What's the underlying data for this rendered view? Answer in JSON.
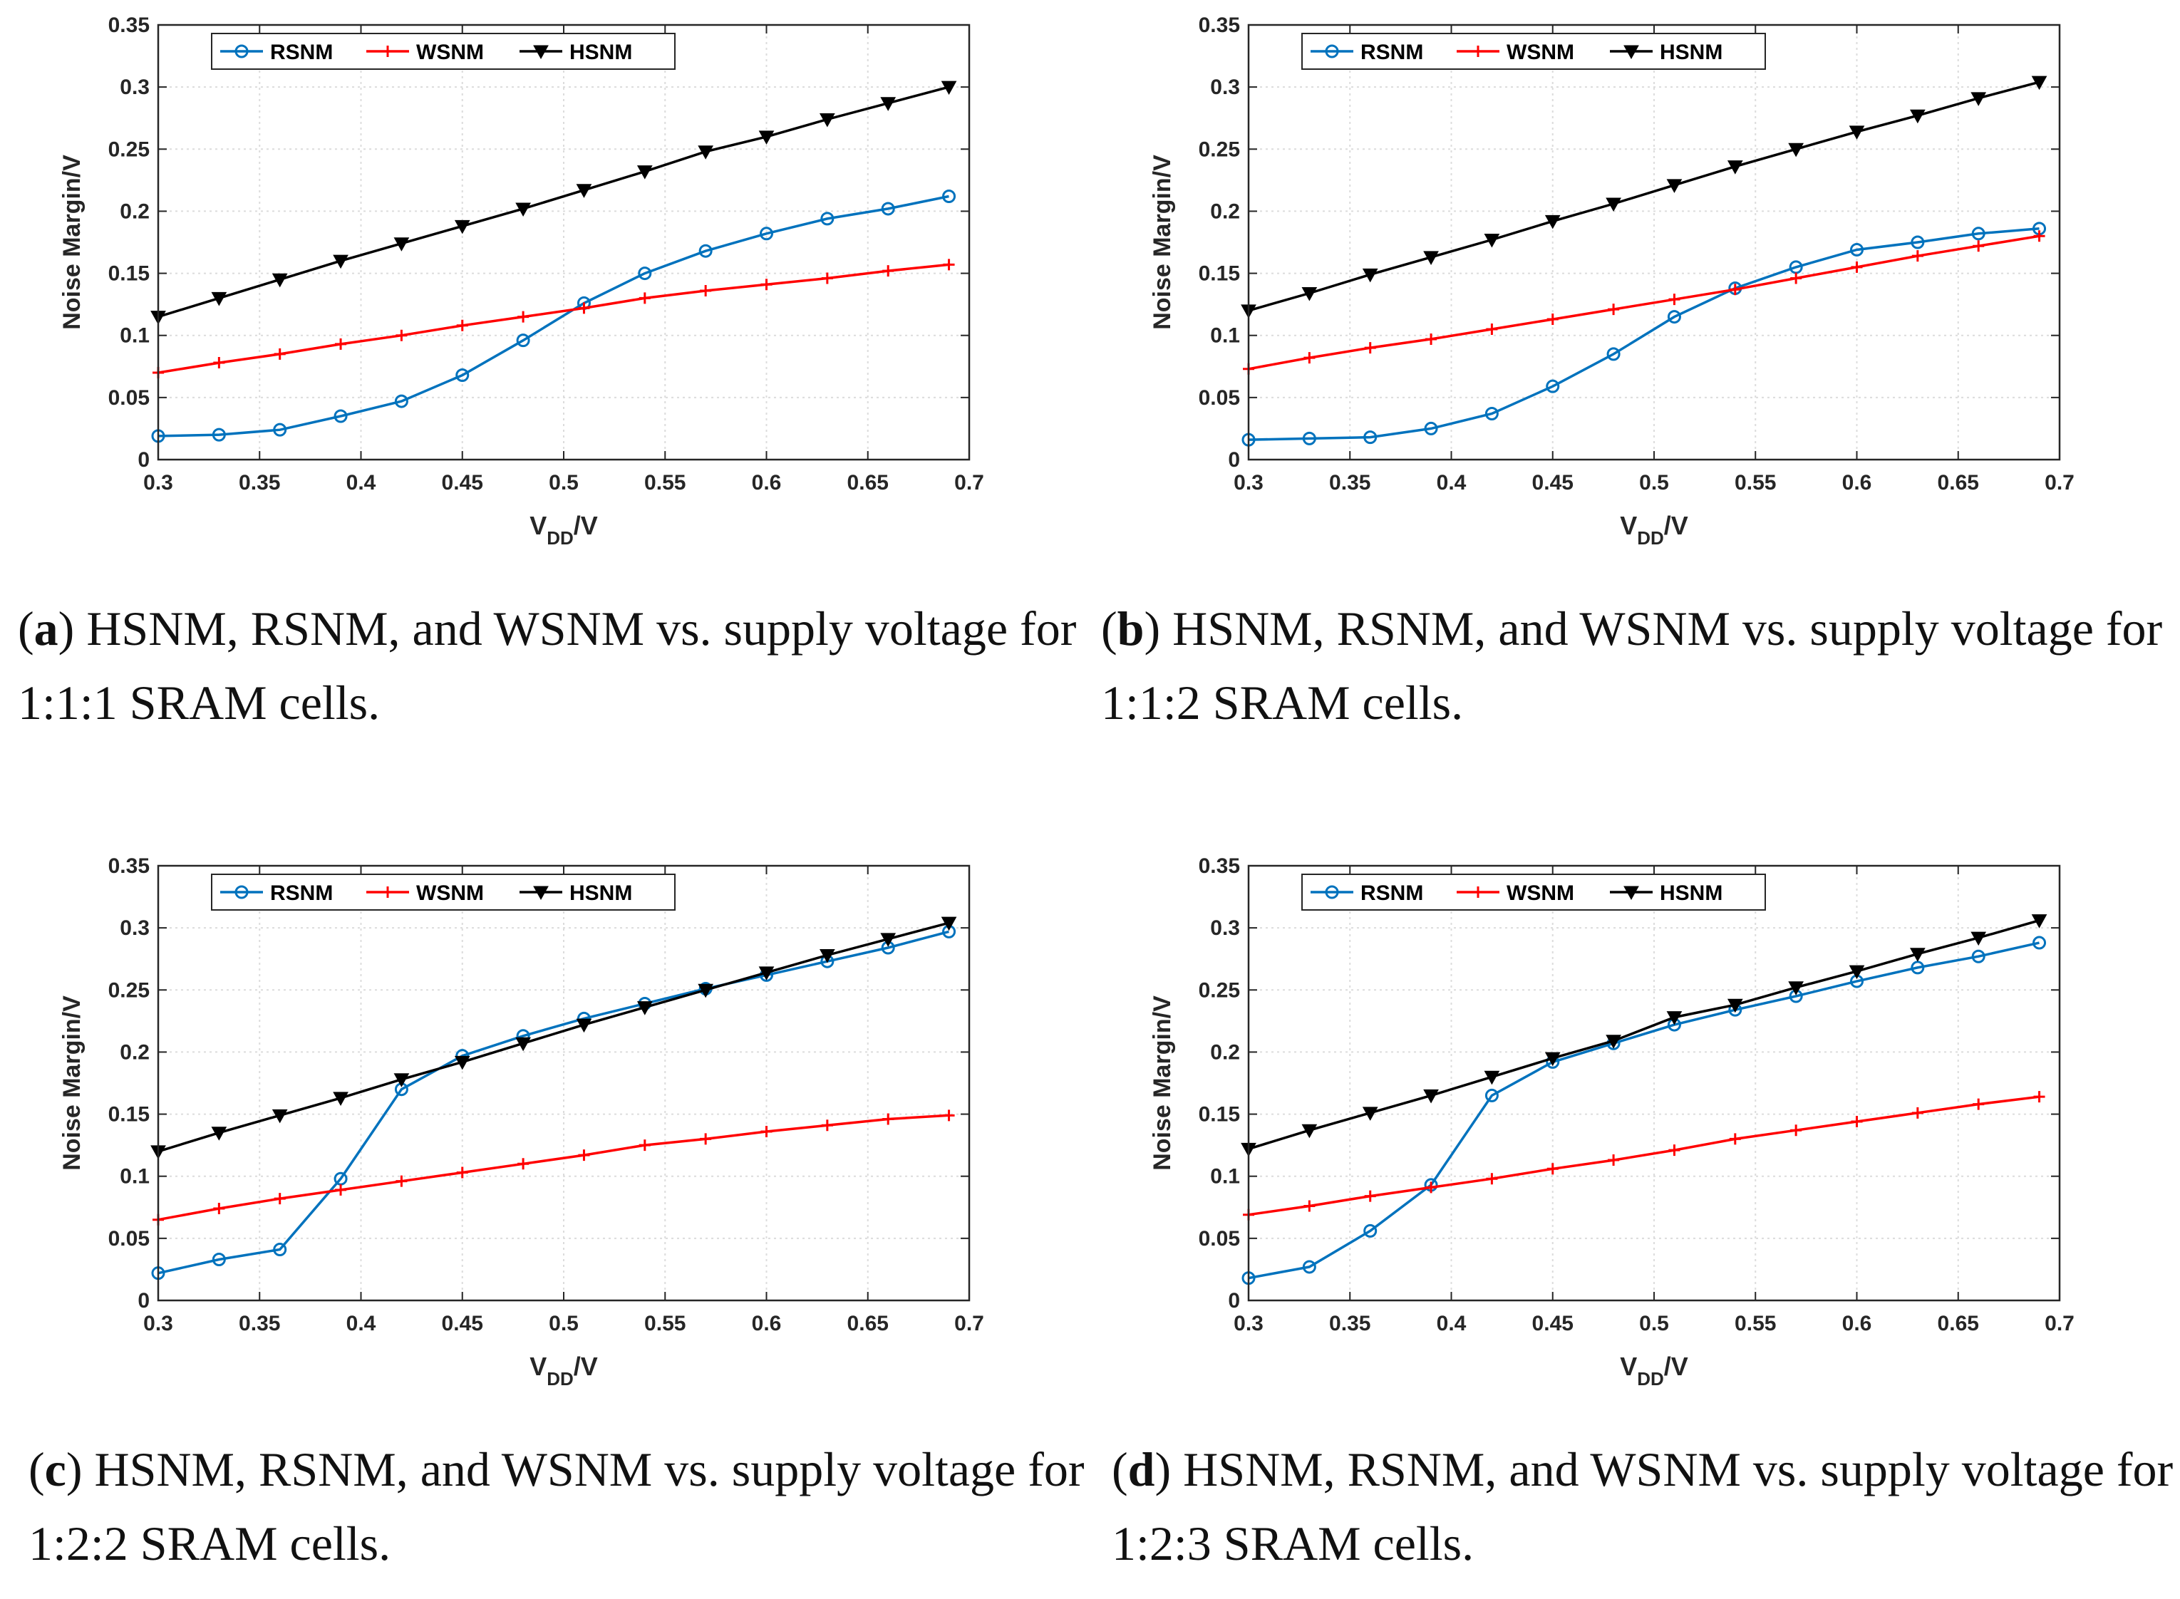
{
  "chart_data": [
    {
      "id": "a",
      "type": "line",
      "xlabel_main": "V",
      "xlabel_sub": "DD",
      "xlabel_tail": "/V",
      "ylabel": "Noise Margin/V",
      "xlim": [
        0.3,
        0.7
      ],
      "ylim": [
        0,
        0.35
      ],
      "xticks": [
        "0.3",
        "0.35",
        "0.4",
        "0.45",
        "0.5",
        "0.55",
        "0.6",
        "0.65",
        "0.7"
      ],
      "yticks": [
        "0",
        "0.05",
        "0.1",
        "0.15",
        "0.2",
        "0.25",
        "0.3",
        "0.35"
      ],
      "grid": true,
      "x": [
        0.3,
        0.33,
        0.36,
        0.39,
        0.42,
        0.45,
        0.48,
        0.51,
        0.54,
        0.57,
        0.6,
        0.63,
        0.66,
        0.69
      ],
      "series": [
        {
          "name": "RSNM",
          "color": "#0072BD",
          "marker": "circle",
          "values": [
            0.019,
            0.02,
            0.024,
            0.035,
            0.047,
            0.068,
            0.096,
            0.126,
            0.15,
            0.168,
            0.182,
            0.194,
            0.202,
            0.212
          ]
        },
        {
          "name": "WSNM",
          "color": "#FF0000",
          "marker": "plus",
          "values": [
            0.07,
            0.078,
            0.085,
            0.093,
            0.1,
            0.108,
            0.115,
            0.122,
            0.13,
            0.136,
            0.141,
            0.146,
            0.152,
            0.157
          ]
        },
        {
          "name": "HSNM",
          "color": "#000000",
          "marker": "triangle-down",
          "values": [
            0.115,
            0.13,
            0.145,
            0.16,
            0.174,
            0.188,
            0.202,
            0.217,
            0.232,
            0.248,
            0.26,
            0.274,
            0.287,
            0.3
          ]
        }
      ],
      "caption_letter": "a",
      "caption_text": " HSNM, RSNM, and WSNM vs.  supply voltage for 1:1:1 SRAM cells."
    },
    {
      "id": "b",
      "type": "line",
      "xlabel_main": "V",
      "xlabel_sub": "DD",
      "xlabel_tail": "/V",
      "ylabel": "Noise Margin/V",
      "xlim": [
        0.3,
        0.7
      ],
      "ylim": [
        0,
        0.35
      ],
      "xticks": [
        "0.3",
        "0.35",
        "0.4",
        "0.45",
        "0.5",
        "0.55",
        "0.6",
        "0.65",
        "0.7"
      ],
      "yticks": [
        "0",
        "0.05",
        "0.1",
        "0.15",
        "0.2",
        "0.25",
        "0.3",
        "0.35"
      ],
      "grid": true,
      "x": [
        0.3,
        0.33,
        0.36,
        0.39,
        0.42,
        0.45,
        0.48,
        0.51,
        0.54,
        0.57,
        0.6,
        0.63,
        0.66,
        0.69
      ],
      "series": [
        {
          "name": "RSNM",
          "color": "#0072BD",
          "marker": "circle",
          "values": [
            0.016,
            0.017,
            0.018,
            0.025,
            0.037,
            0.059,
            0.085,
            0.115,
            0.138,
            0.155,
            0.169,
            0.175,
            0.182,
            0.186
          ]
        },
        {
          "name": "WSNM",
          "color": "#FF0000",
          "marker": "plus",
          "values": [
            0.073,
            0.082,
            0.09,
            0.097,
            0.105,
            0.113,
            0.121,
            0.129,
            0.137,
            0.146,
            0.155,
            0.164,
            0.172,
            0.18
          ]
        },
        {
          "name": "HSNM",
          "color": "#000000",
          "marker": "triangle-down",
          "values": [
            0.12,
            0.134,
            0.149,
            0.163,
            0.177,
            0.192,
            0.206,
            0.221,
            0.236,
            0.25,
            0.264,
            0.277,
            0.291,
            0.304
          ]
        }
      ],
      "caption_letter": "b",
      "caption_text": " HSNM, RSNM, and WSNM vs.  supply voltage for 1:1:2 SRAM cells."
    },
    {
      "id": "c",
      "type": "line",
      "xlabel_main": "V",
      "xlabel_sub": "DD",
      "xlabel_tail": "/V",
      "ylabel": "Noise Margin/V",
      "xlim": [
        0.3,
        0.7
      ],
      "ylim": [
        0,
        0.35
      ],
      "xticks": [
        "0.3",
        "0.35",
        "0.4",
        "0.45",
        "0.5",
        "0.55",
        "0.6",
        "0.65",
        "0.7"
      ],
      "yticks": [
        "0",
        "0.05",
        "0.1",
        "0.15",
        "0.2",
        "0.25",
        "0.3",
        "0.35"
      ],
      "grid": true,
      "x": [
        0.3,
        0.33,
        0.36,
        0.39,
        0.42,
        0.45,
        0.48,
        0.51,
        0.54,
        0.57,
        0.6,
        0.63,
        0.66,
        0.69
      ],
      "series": [
        {
          "name": "RSNM",
          "color": "#0072BD",
          "marker": "circle",
          "values": [
            0.022,
            0.033,
            0.041,
            0.098,
            0.17,
            0.197,
            0.213,
            0.227,
            0.239,
            0.251,
            0.262,
            0.273,
            0.284,
            0.297
          ]
        },
        {
          "name": "WSNM",
          "color": "#FF0000",
          "marker": "plus",
          "values": [
            0.065,
            0.074,
            0.082,
            0.089,
            0.096,
            0.103,
            0.11,
            0.117,
            0.125,
            0.13,
            0.136,
            0.141,
            0.146,
            0.149
          ]
        },
        {
          "name": "HSNM",
          "color": "#000000",
          "marker": "triangle-down",
          "values": [
            0.12,
            0.135,
            0.149,
            0.163,
            0.178,
            0.192,
            0.207,
            0.222,
            0.236,
            0.25,
            0.264,
            0.278,
            0.291,
            0.304
          ]
        }
      ],
      "caption_letter": "c",
      "caption_text": " HSNM, RSNM, and WSNM vs.  supply voltage for 1:2:2 SRAM cells."
    },
    {
      "id": "d",
      "type": "line",
      "xlabel_main": "V",
      "xlabel_sub": "DD",
      "xlabel_tail": "/V",
      "ylabel": "Noise Margin/V",
      "xlim": [
        0.3,
        0.7
      ],
      "ylim": [
        0,
        0.35
      ],
      "xticks": [
        "0.3",
        "0.35",
        "0.4",
        "0.45",
        "0.5",
        "0.55",
        "0.6",
        "0.65",
        "0.7"
      ],
      "yticks": [
        "0",
        "0.05",
        "0.1",
        "0.15",
        "0.2",
        "0.25",
        "0.3",
        "0.35"
      ],
      "grid": true,
      "x": [
        0.3,
        0.33,
        0.36,
        0.39,
        0.42,
        0.45,
        0.48,
        0.51,
        0.54,
        0.57,
        0.6,
        0.63,
        0.66,
        0.69
      ],
      "series": [
        {
          "name": "RSNM",
          "color": "#0072BD",
          "marker": "circle",
          "values": [
            0.018,
            0.027,
            0.056,
            0.093,
            0.165,
            0.192,
            0.207,
            0.222,
            0.234,
            0.245,
            0.257,
            0.268,
            0.277,
            0.288
          ]
        },
        {
          "name": "WSNM",
          "color": "#FF0000",
          "marker": "plus",
          "values": [
            0.069,
            0.076,
            0.084,
            0.091,
            0.098,
            0.106,
            0.113,
            0.121,
            0.13,
            0.137,
            0.144,
            0.151,
            0.158,
            0.164
          ]
        },
        {
          "name": "HSNM",
          "color": "#000000",
          "marker": "triangle-down",
          "values": [
            0.122,
            0.137,
            0.151,
            0.165,
            0.18,
            0.195,
            0.209,
            0.228,
            0.238,
            0.252,
            0.265,
            0.279,
            0.292,
            0.306
          ]
        }
      ],
      "caption_letter": "d",
      "caption_text": " HSNM, RSNM, and WSNM vs.  supply voltage for 1:2:3 SRAM cells."
    }
  ]
}
